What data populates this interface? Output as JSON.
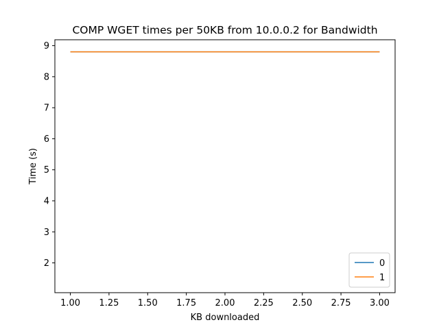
{
  "chart_data": {
    "type": "line",
    "title": "COMP WGET times per 50KB from 10.0.0.2 for Bandwidth",
    "xlabel": "KB downloaded",
    "ylabel": "Time (s)",
    "xlim": [
      0.9,
      3.1
    ],
    "ylim": [
      1.04,
      9.19
    ],
    "xticks": [
      1.0,
      1.25,
      1.5,
      1.75,
      2.0,
      2.25,
      2.5,
      2.75,
      3.0
    ],
    "xtick_labels": [
      "1.00",
      "1.25",
      "1.50",
      "1.75",
      "2.00",
      "2.25",
      "2.50",
      "2.75",
      "3.00"
    ],
    "yticks": [
      2,
      3,
      4,
      5,
      6,
      7,
      8,
      9
    ],
    "ytick_labels": [
      "2",
      "3",
      "4",
      "5",
      "6",
      "7",
      "8",
      "9"
    ],
    "grid": false,
    "legend_position": "lower-right",
    "series": [
      {
        "name": "0",
        "color": "#1f77b4",
        "x": [
          1,
          2,
          3
        ],
        "y": [
          8.8,
          8.8,
          8.8
        ]
      },
      {
        "name": "1",
        "color": "#ff7f0e",
        "x": [
          1,
          2,
          3
        ],
        "y": [
          8.8,
          8.8,
          8.8
        ]
      }
    ]
  }
}
